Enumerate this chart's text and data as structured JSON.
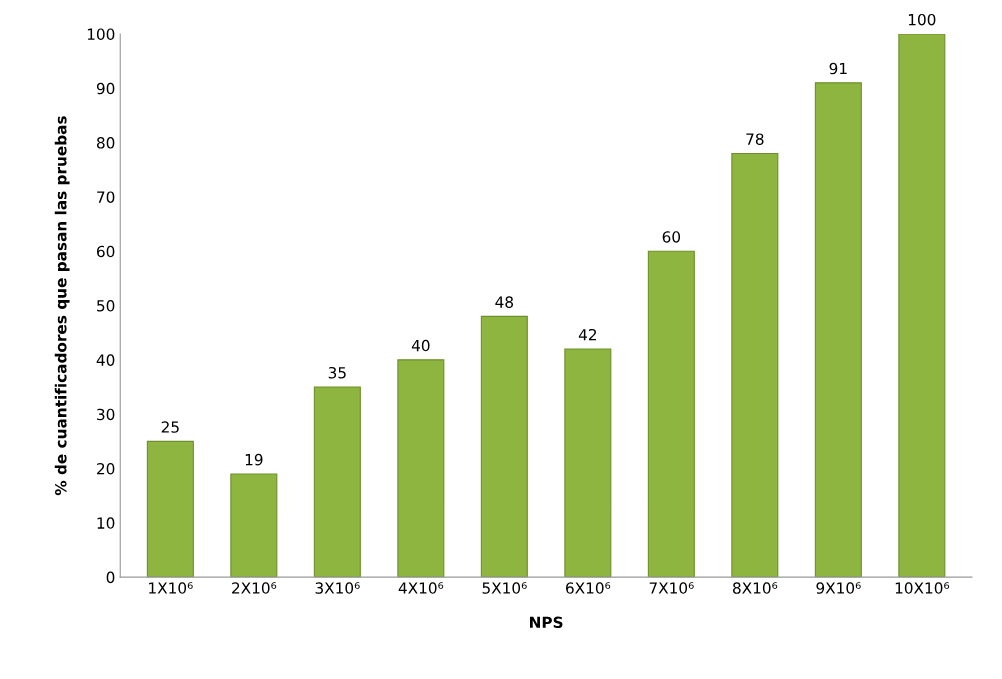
{
  "chart_data": {
    "type": "bar",
    "xlabel": "NPS",
    "ylabel": "% de cuantificadores que pasan las pruebas",
    "categories": [
      "1X10⁶",
      "2X10⁶",
      "3X10⁶",
      "4X10⁶",
      "5X10⁶",
      "6X10⁶",
      "7X10⁶",
      "8X10⁶",
      "9X10⁶",
      "10X10⁶"
    ],
    "values": [
      25,
      19,
      35,
      40,
      48,
      42,
      60,
      78,
      91,
      100
    ],
    "color": "#8db53f",
    "ylim": [
      0,
      100
    ],
    "yticks": [
      0,
      10,
      20,
      30,
      40,
      50,
      60,
      70,
      80,
      90,
      100
    ],
    "grid": false,
    "data_labels": true
  }
}
